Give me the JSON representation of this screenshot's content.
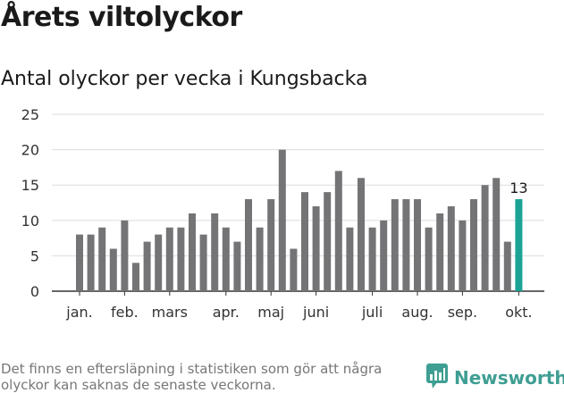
{
  "title": "Årets viltolyckor",
  "subtitle": "Antal olyckor per vecka i Kungsbacka",
  "note": "Det finns en eftersläpning i statistiken som gör att några olyckor kan saknas de senaste veckorna.",
  "brand": "Newsworthy",
  "colors": {
    "bar": "#747477",
    "highlight": "#1aa396",
    "grid": "#dddddd",
    "axis": "#333333",
    "brand": "#3f9e93"
  },
  "chart_data": {
    "type": "bar",
    "title": "Antal olyckor per vecka i Kungsbacka",
    "xlabel": "",
    "ylabel": "",
    "ylim": [
      0,
      25
    ],
    "yticks": [
      0,
      5,
      10,
      15,
      20,
      25
    ],
    "grid": true,
    "values": [
      8,
      8,
      9,
      6,
      10,
      4,
      7,
      8,
      9,
      9,
      11,
      8,
      11,
      9,
      7,
      13,
      9,
      13,
      20,
      6,
      14,
      12,
      14,
      17,
      9,
      16,
      9,
      10,
      13,
      13,
      13,
      9,
      11,
      12,
      10,
      13,
      15,
      16,
      7,
      13
    ],
    "highlight_index": 39,
    "highlight_label": "13",
    "month_labels": [
      {
        "label": "jan.",
        "bar_index": 0
      },
      {
        "label": "feb.",
        "bar_index": 4
      },
      {
        "label": "mars",
        "bar_index": 8
      },
      {
        "label": "apr.",
        "bar_index": 13
      },
      {
        "label": "maj",
        "bar_index": 17
      },
      {
        "label": "juni",
        "bar_index": 21
      },
      {
        "label": "juli",
        "bar_index": 26
      },
      {
        "label": "aug.",
        "bar_index": 30
      },
      {
        "label": "sep.",
        "bar_index": 34
      },
      {
        "label": "okt.",
        "bar_index": 39
      }
    ]
  }
}
